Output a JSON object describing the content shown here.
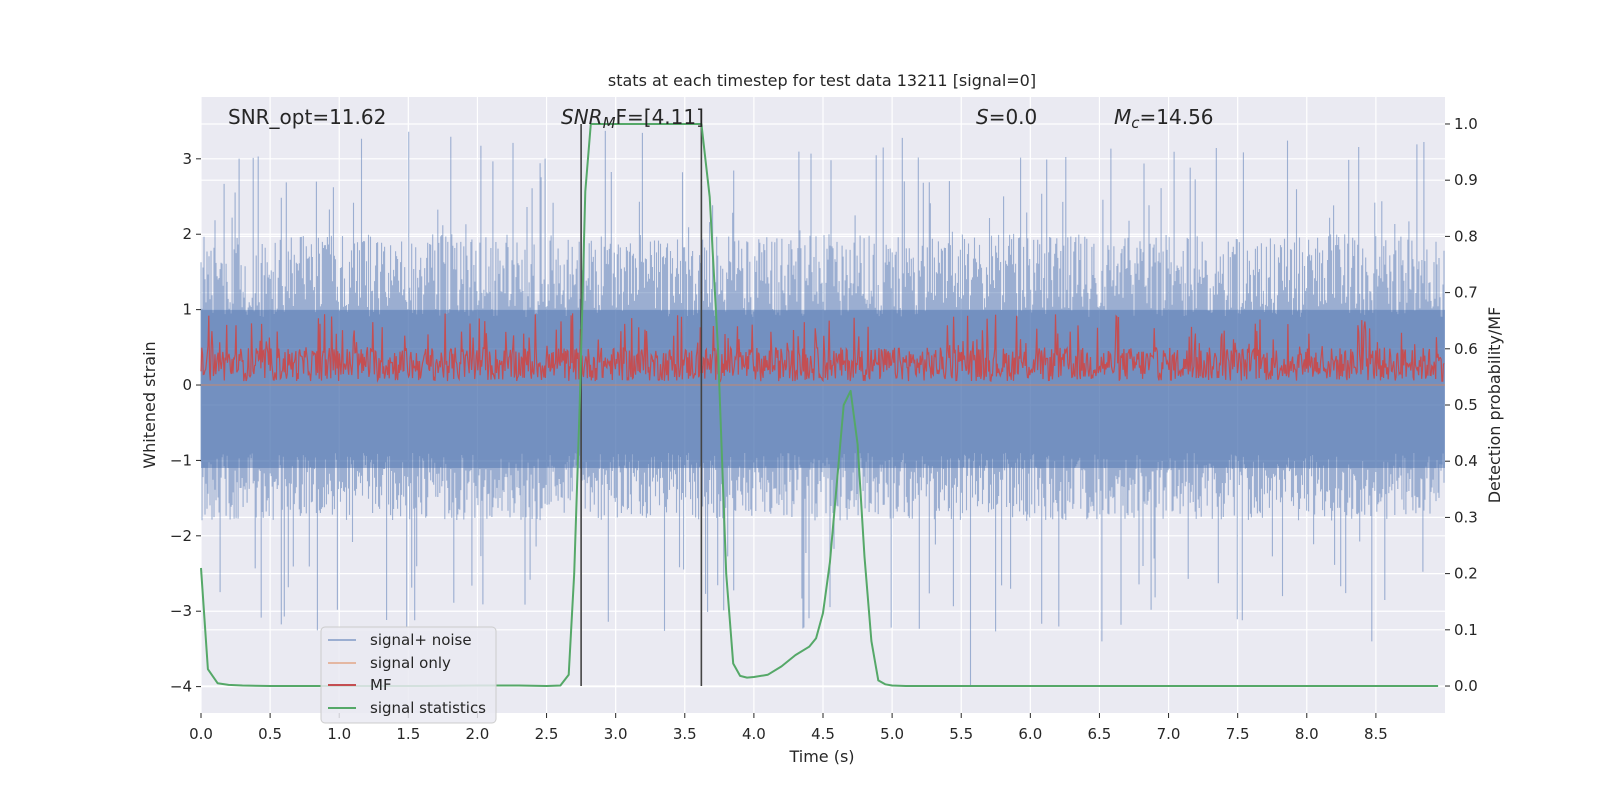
{
  "chart_data": {
    "type": "line",
    "title": "stats at each timestep for test data 13211 [signal=0]",
    "xlabel": "Time (s)",
    "ylabel": "Whitened strain",
    "y2label": "Detection probability/MF",
    "xlim": [
      0,
      9.0
    ],
    "ylim": [
      -4.35,
      3.82
    ],
    "y2lim": [
      -0.048,
      1.048
    ],
    "xticks": [
      "0.0",
      "0.5",
      "1.0",
      "1.5",
      "2.0",
      "2.5",
      "3.0",
      "3.5",
      "4.0",
      "4.5",
      "5.0",
      "5.5",
      "6.0",
      "6.5",
      "7.0",
      "7.5",
      "8.0",
      "8.5"
    ],
    "xtick_values": [
      0,
      0.5,
      1,
      1.5,
      2,
      2.5,
      3,
      3.5,
      4,
      4.5,
      5,
      5.5,
      6,
      6.5,
      7,
      7.5,
      8,
      8.5
    ],
    "yticks": [
      "−4",
      "−3",
      "−2",
      "−1",
      "0",
      "1",
      "2",
      "3"
    ],
    "ytick_values": [
      -4,
      -3,
      -2,
      -1,
      0,
      1,
      2,
      3
    ],
    "y2ticks": [
      "0.0",
      "0.1",
      "0.2",
      "0.3",
      "0.4",
      "0.5",
      "0.6",
      "0.7",
      "0.8",
      "0.9",
      "1.0"
    ],
    "y2tick_values": [
      0,
      0.1,
      0.2,
      0.3,
      0.4,
      0.5,
      0.6,
      0.7,
      0.8,
      0.9,
      1.0
    ],
    "grid": true,
    "legend_position": "lower-left",
    "annotations": {
      "snr_opt": "SNR_opt=11.62",
      "snr_mf_main": "SNR",
      "snr_mf_sub": "M",
      "snr_mf_rest": "F=[4.11]",
      "s_main": "S",
      "s_rest": "=0.0",
      "mc_main": "M",
      "mc_sub": "c",
      "mc_rest": "=14.56"
    },
    "vertical_lines_x": [
      2.75,
      3.62
    ],
    "series": [
      {
        "name": "signal+ noise",
        "color": "#4c72b0",
        "opacity": 0.5,
        "axis": "left",
        "kind": "noise",
        "typical_range": [
          -1.8,
          2.0
        ],
        "peak_range": [
          -4.0,
          3.5
        ]
      },
      {
        "name": "signal only",
        "color": "#dd8452",
        "opacity": 0.5,
        "axis": "left",
        "kind": "flat"
      },
      {
        "name": "MF",
        "color": "#c44e52",
        "axis": "left",
        "kind": "band",
        "typical_range": [
          0.0,
          0.6
        ],
        "peak": 1.0
      },
      {
        "name": "signal statistics",
        "color": "#55a868",
        "axis": "right",
        "x": [
          0.0,
          0.05,
          0.12,
          0.2,
          0.3,
          0.5,
          0.8,
          1.2,
          1.6,
          2.0,
          2.3,
          2.5,
          2.6,
          2.66,
          2.7,
          2.74,
          2.78,
          2.82,
          2.9,
          3.1,
          3.3,
          3.5,
          3.62,
          3.68,
          3.74,
          3.8,
          3.85,
          3.9,
          3.95,
          4.0,
          4.1,
          4.2,
          4.3,
          4.4,
          4.45,
          4.5,
          4.55,
          4.6,
          4.65,
          4.7,
          4.75,
          4.8,
          4.85,
          4.9,
          4.95,
          5.0,
          5.1,
          5.5,
          6.0,
          7.0,
          8.0,
          8.95
        ],
        "y": [
          0.21,
          0.03,
          0.005,
          0.002,
          0.001,
          0.0,
          0.0,
          0.0,
          0.0,
          0.001,
          0.001,
          0.0,
          0.001,
          0.02,
          0.2,
          0.5,
          0.88,
          1.0,
          1.0,
          1.0,
          1.0,
          1.0,
          1.0,
          0.87,
          0.6,
          0.2,
          0.04,
          0.018,
          0.015,
          0.016,
          0.02,
          0.035,
          0.055,
          0.07,
          0.085,
          0.13,
          0.22,
          0.36,
          0.5,
          0.525,
          0.43,
          0.23,
          0.08,
          0.01,
          0.003,
          0.001,
          0.0,
          0.0,
          0.0,
          0.0,
          0.0,
          0.0
        ]
      }
    ]
  }
}
